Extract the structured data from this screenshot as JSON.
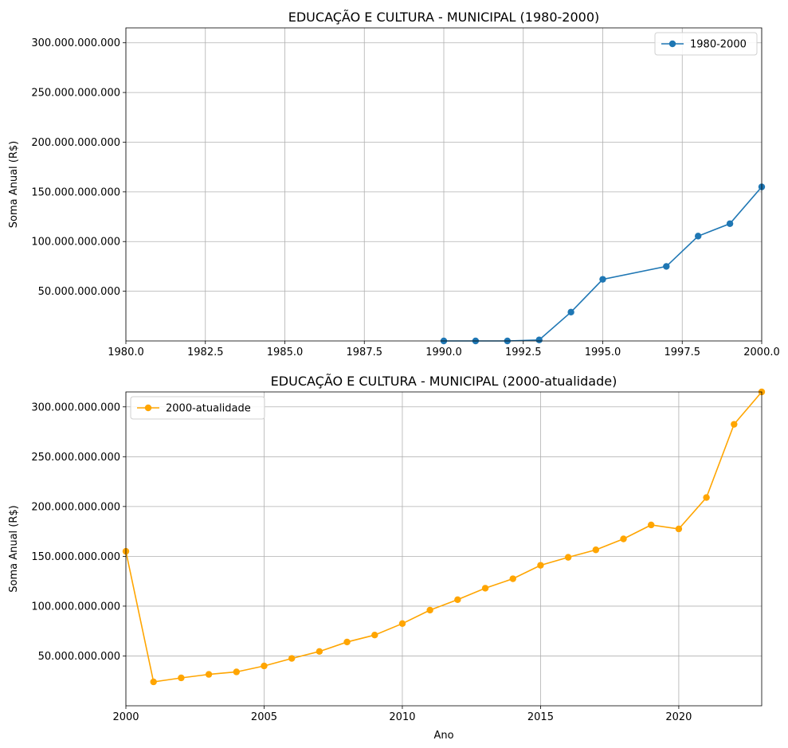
{
  "chart_data": [
    {
      "type": "line",
      "title": "EDUCAÇÃO E CULTURA - MUNICIPAL (1980-2000)",
      "xlabel": "",
      "ylabel": "Soma Anual (R$)",
      "xlim": [
        1980,
        2000
      ],
      "ylim": [
        0,
        315000000000
      ],
      "x_ticks": [
        1980,
        1982.5,
        1985,
        1987.5,
        1990,
        1992.5,
        1995,
        1997.5,
        2000
      ],
      "x_tick_labels": [
        "1980.0",
        "1982.5",
        "1985.0",
        "1987.5",
        "1990.0",
        "1992.5",
        "1995.0",
        "1997.5",
        "2000.0"
      ],
      "y_ticks": [
        50000000000,
        100000000000,
        150000000000,
        200000000000,
        250000000000,
        300000000000
      ],
      "y_tick_labels": [
        "50.000.000.000",
        "100.000.000.000",
        "150.000.000.000",
        "200.000.000.000",
        "250.000.000.000",
        "300.000.000.000"
      ],
      "grid": true,
      "legend_position": "top-right",
      "series": [
        {
          "name": "1980-2000",
          "color": "#1f77b4",
          "marker": "circle",
          "x": [
            1990,
            1991,
            1992,
            1993,
            1994,
            1995,
            1997,
            1998,
            1999,
            2000
          ],
          "values": [
            0,
            0,
            0,
            1000000000,
            29000000000,
            62000000000,
            75000000000,
            105500000000,
            118000000000,
            155000000000
          ]
        }
      ]
    },
    {
      "type": "line",
      "title": "EDUCAÇÃO E CULTURA - MUNICIPAL (2000-atualidade)",
      "xlabel": "Ano",
      "ylabel": "Soma Anual (R$)",
      "xlim": [
        2000,
        2023
      ],
      "ylim": [
        0,
        315000000000
      ],
      "x_ticks": [
        2000,
        2005,
        2010,
        2015,
        2020
      ],
      "x_tick_labels": [
        "2000",
        "2005",
        "2010",
        "2015",
        "2020"
      ],
      "y_ticks": [
        50000000000,
        100000000000,
        150000000000,
        200000000000,
        250000000000,
        300000000000
      ],
      "y_tick_labels": [
        "50.000.000.000",
        "100.000.000.000",
        "150.000.000.000",
        "200.000.000.000",
        "250.000.000.000",
        "300.000.000.000"
      ],
      "grid": true,
      "legend_position": "top-left",
      "series": [
        {
          "name": "2000-atualidade",
          "color": "#ffa500",
          "marker": "circle",
          "x": [
            2000,
            2001,
            2002,
            2003,
            2004,
            2005,
            2006,
            2007,
            2008,
            2009,
            2010,
            2011,
            2012,
            2013,
            2014,
            2015,
            2016,
            2017,
            2018,
            2019,
            2020,
            2021,
            2022,
            2023
          ],
          "values": [
            155000000000,
            24000000000,
            28000000000,
            31500000000,
            34000000000,
            40000000000,
            47500000000,
            54500000000,
            64000000000,
            71000000000,
            82500000000,
            96000000000,
            106500000000,
            118000000000,
            127500000000,
            141000000000,
            149000000000,
            156500000000,
            167500000000,
            181500000000,
            177500000000,
            209000000000,
            282500000000,
            315000000000
          ]
        }
      ]
    }
  ]
}
